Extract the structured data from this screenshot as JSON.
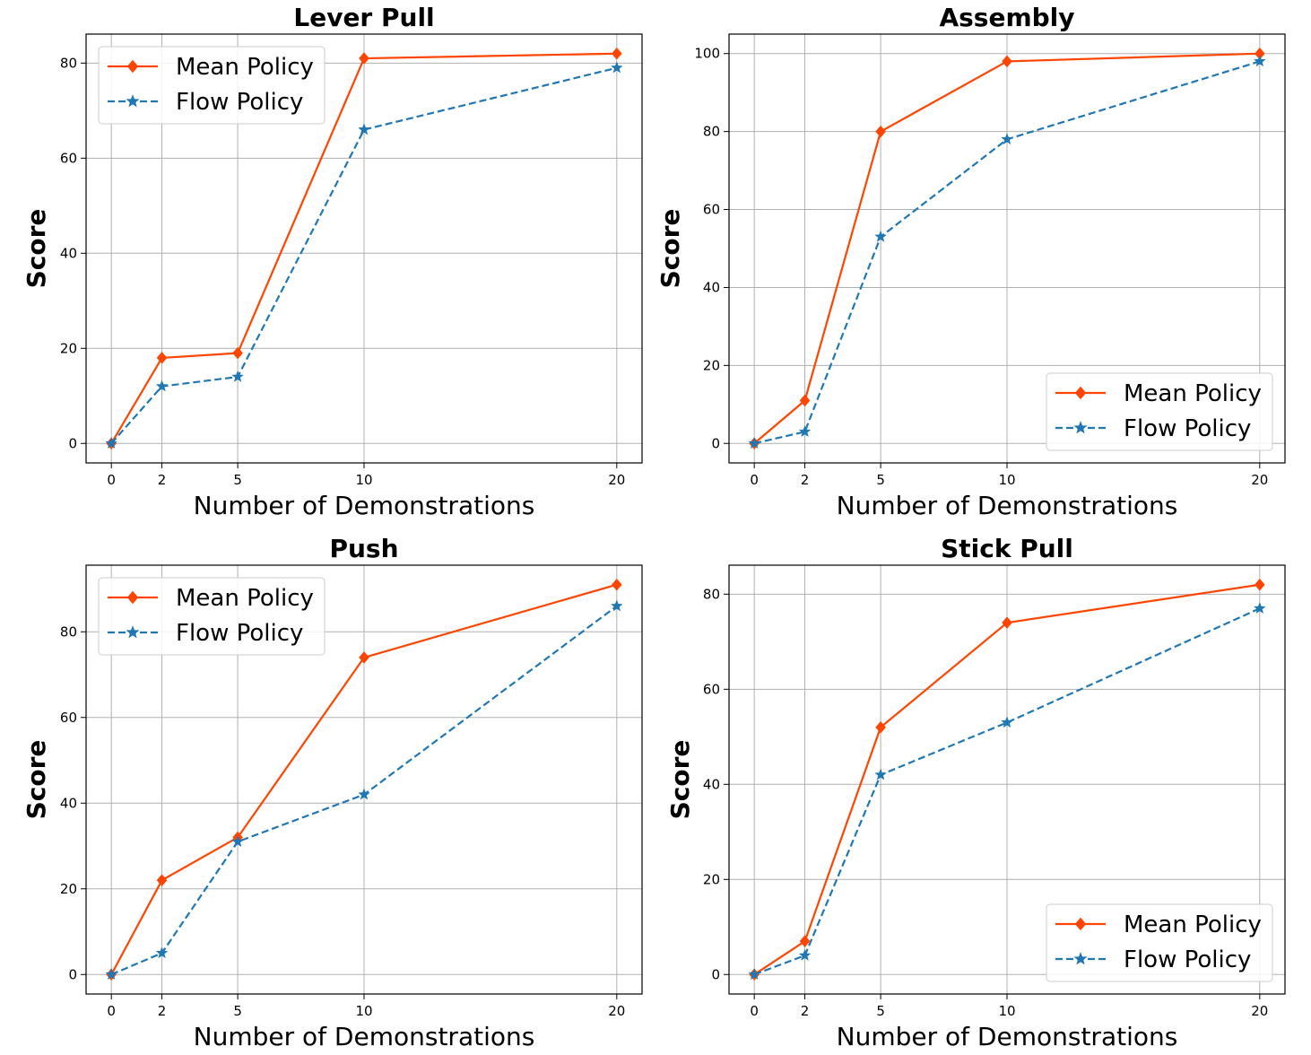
{
  "colors": {
    "mean": "#ff4500",
    "flow": "#1f77b4",
    "grid": "#b0b0b0"
  },
  "chart_data": [
    {
      "type": "line",
      "title": "Lever Pull",
      "xlabel": "Number of Demonstrations",
      "ylabel": "Score",
      "x": [
        0,
        2,
        5,
        10,
        20
      ],
      "xticks": [
        0,
        2,
        5,
        10,
        20
      ],
      "yticks": [
        0,
        20,
        40,
        60,
        80
      ],
      "xlim": [
        -1,
        21
      ],
      "ylim": [
        -4.1,
        86.1
      ],
      "grid": true,
      "legend": "upper left",
      "series": [
        {
          "name": "Mean Policy",
          "values": [
            0,
            18,
            19,
            81,
            82
          ],
          "style": "solid",
          "marker": "diamond",
          "color": "#ff4500"
        },
        {
          "name": "Flow Policy",
          "values": [
            0,
            12,
            14,
            66,
            79
          ],
          "style": "dashed",
          "marker": "star",
          "color": "#1f77b4"
        }
      ]
    },
    {
      "type": "line",
      "title": "Assembly",
      "xlabel": "Number of Demonstrations",
      "ylabel": "Score",
      "x": [
        0,
        2,
        5,
        10,
        20
      ],
      "xticks": [
        0,
        2,
        5,
        10,
        20
      ],
      "yticks": [
        0,
        20,
        40,
        60,
        80,
        100
      ],
      "xlim": [
        -1,
        21
      ],
      "ylim": [
        -5,
        105
      ],
      "grid": true,
      "legend": "lower right",
      "series": [
        {
          "name": "Mean Policy",
          "values": [
            0,
            11,
            80,
            98,
            100
          ],
          "style": "solid",
          "marker": "diamond",
          "color": "#ff4500"
        },
        {
          "name": "Flow Policy",
          "values": [
            0,
            3,
            53,
            78,
            98
          ],
          "style": "dashed",
          "marker": "star",
          "color": "#1f77b4"
        }
      ]
    },
    {
      "type": "line",
      "title": "Push",
      "xlabel": "Number of Demonstrations",
      "ylabel": "Score",
      "x": [
        0,
        2,
        5,
        10,
        20
      ],
      "xticks": [
        0,
        2,
        5,
        10,
        20
      ],
      "yticks": [
        0,
        20,
        40,
        60,
        80
      ],
      "xlim": [
        -1,
        21
      ],
      "ylim": [
        -4.55,
        95.55
      ],
      "grid": true,
      "legend": "upper left",
      "series": [
        {
          "name": "Mean Policy",
          "values": [
            0,
            22,
            32,
            74,
            91
          ],
          "style": "solid",
          "marker": "diamond",
          "color": "#ff4500"
        },
        {
          "name": "Flow Policy",
          "values": [
            0,
            5,
            31,
            42,
            86
          ],
          "style": "dashed",
          "marker": "star",
          "color": "#1f77b4"
        }
      ]
    },
    {
      "type": "line",
      "title": "Stick Pull",
      "xlabel": "Number of Demonstrations",
      "ylabel": "Score",
      "x": [
        0,
        2,
        5,
        10,
        20
      ],
      "xticks": [
        0,
        2,
        5,
        10,
        20
      ],
      "yticks": [
        0,
        20,
        40,
        60,
        80
      ],
      "xlim": [
        -1,
        21
      ],
      "ylim": [
        -4.1,
        86.1
      ],
      "grid": true,
      "legend": "lower right",
      "series": [
        {
          "name": "Mean Policy",
          "values": [
            0,
            7,
            52,
            74,
            82
          ],
          "style": "solid",
          "marker": "diamond",
          "color": "#ff4500"
        },
        {
          "name": "Flow Policy",
          "values": [
            0,
            4,
            42,
            53,
            77
          ],
          "style": "dashed",
          "marker": "star",
          "color": "#1f77b4"
        }
      ]
    }
  ]
}
